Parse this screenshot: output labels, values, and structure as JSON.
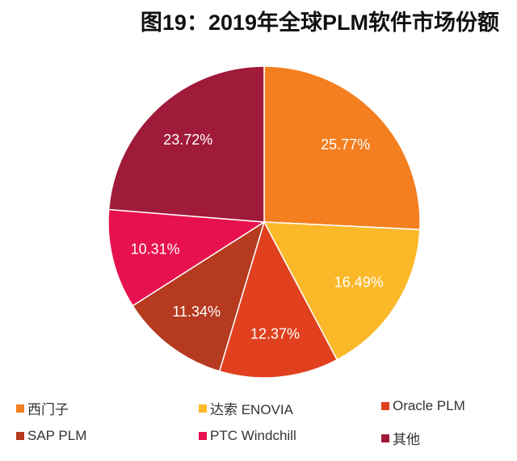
{
  "chart_data": {
    "type": "pie",
    "title": "图19：2019年全球PLM软件市场份额",
    "start": "top",
    "direction": "clockwise",
    "legend_position": "bottom",
    "slices": [
      {
        "label": "西门子",
        "value": 25.77,
        "display": "25.77%",
        "color": "#F47F20"
      },
      {
        "label": "达索 ENOVIA",
        "value": 16.49,
        "display": "16.49%",
        "color": "#FBB829"
      },
      {
        "label": "Oracle PLM",
        "value": 12.37,
        "display": "12.37%",
        "color": "#E0401E"
      },
      {
        "label": "SAP PLM",
        "value": 11.34,
        "display": "11.34%",
        "color": "#B53A20"
      },
      {
        "label": "PTC Windchill",
        "value": 10.31,
        "display": "10.31%",
        "color": "#E8114F"
      },
      {
        "label": "其他",
        "value": 23.72,
        "display": "23.72%",
        "color": "#A01A3A"
      }
    ]
  }
}
